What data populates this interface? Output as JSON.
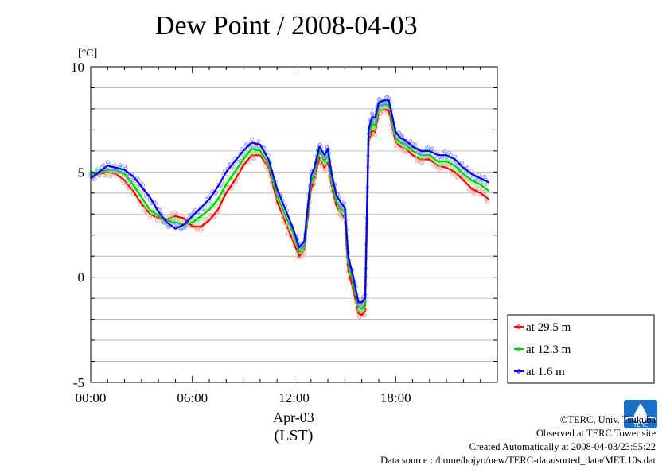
{
  "title": "Dew Point / 2008-04-03",
  "chart_data": {
    "type": "line",
    "title": "Dew Point / 2008-04-03",
    "ylabel": "[°C]",
    "xlabel_date": "Apr-03",
    "xlabel_tz": "(LST)",
    "ylim": [
      -5,
      10
    ],
    "xlim": [
      0,
      24
    ],
    "yticks": [
      {
        "value": -5,
        "label": "-5"
      },
      {
        "value": 0,
        "label": "0"
      },
      {
        "value": 5,
        "label": "5"
      },
      {
        "value": 10,
        "label": "10"
      }
    ],
    "xticks": [
      {
        "value": 0,
        "label": "00:00"
      },
      {
        "value": 6,
        "label": "06:00"
      },
      {
        "value": 12,
        "label": "12:00"
      },
      {
        "value": 18,
        "label": "18:00"
      }
    ],
    "grid": true,
    "legend_position": "right-bottom",
    "series": [
      {
        "name": "at 29.5 m",
        "color": "#ff0000",
        "dot_color": "#ff9999",
        "x": [
          0,
          0.5,
          1,
          1.5,
          2,
          2.5,
          3,
          3.5,
          4,
          4.5,
          5,
          5.5,
          6,
          6.5,
          7,
          7.5,
          8,
          8.5,
          9,
          9.5,
          10,
          10.5,
          11,
          11.5,
          12,
          12.3,
          12.6,
          13,
          13.2,
          13.5,
          13.8,
          14,
          14.2,
          14.5,
          14.8,
          15,
          15.2,
          15.5,
          15.8,
          16,
          16.2,
          16.4,
          16.6,
          16.8,
          17,
          17.3,
          17.6,
          18,
          18.3,
          18.6,
          19,
          19.5,
          20,
          20.5,
          21,
          21.5,
          22,
          22.5,
          23,
          23.5
        ],
        "y": [
          4.8,
          4.9,
          5.0,
          4.9,
          4.6,
          4.1,
          3.5,
          3.0,
          2.8,
          2.75,
          2.9,
          2.8,
          2.4,
          2.4,
          2.7,
          3.2,
          4.0,
          4.6,
          5.3,
          5.8,
          5.8,
          5.2,
          3.6,
          2.6,
          1.6,
          1.0,
          1.3,
          4.2,
          4.6,
          5.7,
          5.2,
          5.5,
          4.4,
          3.4,
          3.0,
          2.8,
          0.3,
          -0.6,
          -1.7,
          -1.8,
          -1.6,
          6.4,
          7.0,
          6.9,
          7.9,
          8.0,
          7.9,
          6.4,
          6.2,
          6.1,
          5.8,
          5.6,
          5.6,
          5.3,
          5.2,
          5.0,
          4.6,
          4.2,
          4.0,
          3.7
        ]
      },
      {
        "name": "at 12.3 m",
        "color": "#00cc00",
        "dot_color": "#66ff66",
        "x": [
          0,
          0.5,
          1,
          1.5,
          2,
          2.5,
          3,
          3.5,
          4,
          4.5,
          5,
          5.5,
          6,
          6.5,
          7,
          7.5,
          8,
          8.5,
          9,
          9.5,
          10,
          10.5,
          11,
          11.5,
          12,
          12.3,
          12.6,
          13,
          13.2,
          13.5,
          13.8,
          14,
          14.2,
          14.5,
          14.8,
          15,
          15.2,
          15.5,
          15.8,
          16,
          16.2,
          16.4,
          16.6,
          16.8,
          17,
          17.3,
          17.6,
          18,
          18.3,
          18.6,
          19,
          19.5,
          20,
          20.5,
          21,
          21.5,
          22,
          22.5,
          23,
          23.5
        ],
        "y": [
          4.9,
          5.0,
          5.1,
          5.1,
          4.9,
          4.4,
          3.8,
          3.2,
          2.9,
          2.7,
          2.6,
          2.5,
          2.6,
          2.9,
          3.2,
          3.7,
          4.4,
          5.0,
          5.6,
          6.1,
          6.0,
          5.4,
          3.9,
          2.9,
          2.0,
          1.2,
          1.5,
          4.5,
          4.9,
          6.0,
          5.5,
          5.8,
          4.7,
          3.6,
          3.2,
          3.1,
          0.7,
          -0.3,
          -1.4,
          -1.5,
          -1.3,
          6.7,
          7.3,
          7.2,
          8.1,
          8.2,
          8.2,
          6.6,
          6.4,
          6.3,
          6.0,
          5.8,
          5.8,
          5.5,
          5.5,
          5.3,
          4.9,
          4.6,
          4.4,
          4.1
        ]
      },
      {
        "name": "at 1.6 m",
        "color": "#0000ff",
        "dot_color": "#8888ff",
        "x": [
          0,
          0.5,
          1,
          1.5,
          2,
          2.5,
          3,
          3.5,
          4,
          4.5,
          5,
          5.5,
          6,
          6.5,
          7,
          7.5,
          8,
          8.5,
          9,
          9.5,
          10,
          10.5,
          11,
          11.5,
          12,
          12.3,
          12.6,
          13,
          13.2,
          13.5,
          13.8,
          14,
          14.2,
          14.5,
          14.8,
          15,
          15.2,
          15.5,
          15.8,
          16,
          16.2,
          16.4,
          16.6,
          16.8,
          17,
          17.3,
          17.6,
          18,
          18.3,
          18.6,
          19,
          19.5,
          20,
          20.5,
          21,
          21.5,
          22,
          22.5,
          23,
          23.5
        ],
        "y": [
          4.7,
          5.0,
          5.3,
          5.2,
          5.1,
          4.8,
          4.3,
          3.8,
          3.1,
          2.6,
          2.3,
          2.5,
          2.9,
          3.3,
          3.7,
          4.3,
          5.0,
          5.5,
          6.0,
          6.4,
          6.3,
          5.6,
          4.2,
          3.2,
          2.2,
          1.4,
          1.7,
          4.8,
          5.2,
          6.2,
          5.8,
          6.1,
          5.0,
          3.9,
          3.5,
          3.3,
          1.0,
          0.0,
          -1.2,
          -1.2,
          -1.0,
          7.0,
          7.6,
          7.6,
          8.3,
          8.4,
          8.4,
          6.9,
          6.6,
          6.5,
          6.2,
          6.0,
          6.0,
          5.8,
          5.8,
          5.6,
          5.2,
          4.9,
          4.7,
          4.5
        ]
      }
    ]
  },
  "legend": [
    {
      "label": "at 29.5 m",
      "color": "#ff0000"
    },
    {
      "label": "at 12.3 m",
      "color": "#00cc00"
    },
    {
      "label": "at 1.6 m",
      "color": "#0000ff"
    }
  ],
  "footer": {
    "copyright": "©TERC, Univ. Tsukuba",
    "observed": "Observed at TERC Tower site",
    "created": "Created Automatically at 2008-04-03/23:55:22",
    "source": "Data source : /home/hojyo/new/TERC-data/sorted_data/MET.10s.dat"
  },
  "logo": {
    "icon": "terc-logo-icon",
    "text": "TERC"
  }
}
